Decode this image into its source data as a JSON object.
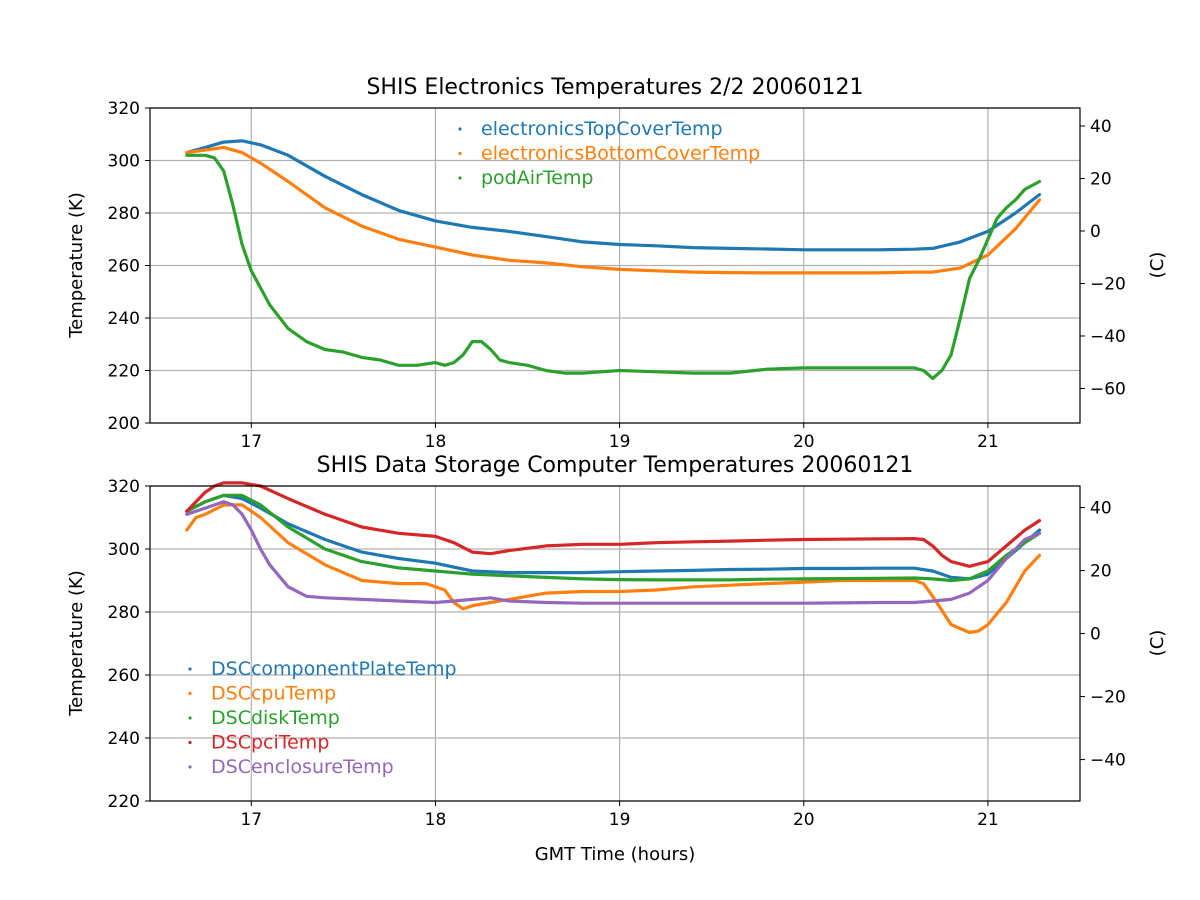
{
  "colors": {
    "blue": "#1f77b4",
    "orange": "#ff7f0e",
    "green": "#2ca02c",
    "red": "#d62728",
    "purple": "#9467bd",
    "grid": "#b0b0b0"
  },
  "chart_data": [
    {
      "type": "line",
      "title": "SHIS Electronics Temperatures 2/2 20060121",
      "xlabel": "",
      "ylabel": "Temperature (K)",
      "y2label": "(C)",
      "xlim": [
        16.45,
        21.5
      ],
      "ylim": [
        200,
        320
      ],
      "y2lim": [
        -73.15,
        46.85
      ],
      "xticks": [
        17,
        18,
        19,
        20,
        21
      ],
      "yticks": [
        200,
        220,
        240,
        260,
        280,
        300,
        320
      ],
      "y2ticks": [
        -60,
        -40,
        -20,
        0,
        20,
        40
      ],
      "grid": true,
      "legend_position": "top-center",
      "series": [
        {
          "name": "electronicsTopCoverTemp",
          "color": "blue",
          "x": [
            16.65,
            16.75,
            16.85,
            16.95,
            17.05,
            17.2,
            17.4,
            17.6,
            17.8,
            18.0,
            18.2,
            18.4,
            18.6,
            18.8,
            19.0,
            19.2,
            19.4,
            19.6,
            19.8,
            20.0,
            20.2,
            20.4,
            20.6,
            20.7,
            20.85,
            21.0,
            21.15,
            21.28
          ],
          "y": [
            303,
            305,
            307,
            307.5,
            306,
            302,
            294,
            287,
            281,
            277,
            274.5,
            273,
            271,
            269,
            268,
            267.5,
            266.8,
            266.5,
            266.3,
            266,
            266,
            266,
            266.2,
            266.5,
            269,
            273,
            280,
            287
          ]
        },
        {
          "name": "electronicsBottomCoverTemp",
          "color": "orange",
          "x": [
            16.65,
            16.75,
            16.85,
            16.95,
            17.05,
            17.2,
            17.4,
            17.6,
            17.8,
            18.0,
            18.2,
            18.4,
            18.6,
            18.8,
            19.0,
            19.2,
            19.4,
            19.6,
            19.8,
            20.0,
            20.2,
            20.4,
            20.6,
            20.7,
            20.85,
            21.0,
            21.15,
            21.28
          ],
          "y": [
            303,
            304,
            305,
            303,
            299,
            292,
            282,
            275,
            270,
            267,
            264,
            262,
            261,
            259.5,
            258.5,
            258,
            257.5,
            257.3,
            257.2,
            257.2,
            257.2,
            257.2,
            257.5,
            257.5,
            259,
            264,
            274,
            285
          ]
        },
        {
          "name": "podAirTemp",
          "color": "green",
          "x": [
            16.65,
            16.75,
            16.8,
            16.85,
            16.9,
            16.95,
            17.0,
            17.1,
            17.2,
            17.3,
            17.4,
            17.5,
            17.6,
            17.7,
            17.8,
            17.9,
            18.0,
            18.05,
            18.1,
            18.15,
            18.2,
            18.25,
            18.3,
            18.35,
            18.4,
            18.5,
            18.6,
            18.7,
            18.8,
            18.9,
            19.0,
            19.2,
            19.4,
            19.6,
            19.8,
            20.0,
            20.2,
            20.4,
            20.6,
            20.65,
            20.7,
            20.75,
            20.8,
            20.85,
            20.9,
            20.95,
            21.0,
            21.05,
            21.1,
            21.15,
            21.2,
            21.28
          ],
          "y": [
            302,
            302,
            301,
            296,
            283,
            268,
            258,
            245,
            236,
            231,
            228,
            227,
            225,
            224,
            222,
            222,
            223,
            222,
            223,
            226,
            231,
            231,
            228,
            224,
            223,
            222,
            220,
            219,
            219,
            219.5,
            220,
            219.5,
            219,
            219,
            220.5,
            221,
            221,
            221,
            221,
            220,
            217,
            220,
            226,
            240,
            255,
            262,
            270,
            278,
            282,
            285,
            289,
            292
          ]
        }
      ]
    },
    {
      "type": "line",
      "title": "SHIS Data Storage Computer Temperatures 20060121",
      "xlabel": "GMT Time (hours)",
      "ylabel": "Temperature (K)",
      "y2label": "(C)",
      "xlim": [
        16.45,
        21.5
      ],
      "ylim": [
        220,
        320
      ],
      "y2lim": [
        -53.15,
        46.85
      ],
      "xticks": [
        17,
        18,
        19,
        20,
        21
      ],
      "yticks": [
        220,
        240,
        260,
        280,
        300,
        320
      ],
      "y2ticks": [
        -40,
        -20,
        0,
        20,
        40
      ],
      "grid": true,
      "legend_position": "lower-left",
      "series": [
        {
          "name": "DSCcomponentPlateTemp",
          "color": "blue",
          "x": [
            16.65,
            16.75,
            16.85,
            16.95,
            17.05,
            17.2,
            17.4,
            17.6,
            17.8,
            18.0,
            18.2,
            18.4,
            18.6,
            18.8,
            19.0,
            19.2,
            19.4,
            19.6,
            19.8,
            20.0,
            20.2,
            20.4,
            20.6,
            20.7,
            20.8,
            20.9,
            21.0,
            21.1,
            21.2,
            21.28
          ],
          "y": [
            312,
            315,
            317,
            316,
            313,
            308,
            303,
            299,
            297,
            295.5,
            293,
            292.5,
            292.5,
            292.5,
            292.8,
            293,
            293.2,
            293.5,
            293.6,
            293.8,
            293.8,
            293.9,
            293.9,
            293,
            291,
            290.5,
            292,
            297,
            302,
            306
          ]
        },
        {
          "name": "DSCcpuTemp",
          "color": "orange",
          "x": [
            16.65,
            16.7,
            16.75,
            16.85,
            16.95,
            17.05,
            17.2,
            17.4,
            17.6,
            17.8,
            17.95,
            18.05,
            18.1,
            18.15,
            18.2,
            18.3,
            18.4,
            18.6,
            18.8,
            19.0,
            19.2,
            19.4,
            19.6,
            19.8,
            20.0,
            20.2,
            20.4,
            20.6,
            20.65,
            20.7,
            20.8,
            20.9,
            20.95,
            21.0,
            21.1,
            21.2,
            21.28
          ],
          "y": [
            306,
            310,
            311,
            314,
            314,
            310,
            302,
            295,
            290,
            289,
            289,
            287,
            283,
            281,
            282,
            283,
            284,
            286,
            286.5,
            286.5,
            287,
            288,
            288.5,
            289,
            289.5,
            290,
            290,
            290,
            289,
            285,
            276,
            273.5,
            274,
            276,
            283,
            293,
            298
          ]
        },
        {
          "name": "DSCdiskTemp",
          "color": "green",
          "x": [
            16.65,
            16.75,
            16.85,
            16.95,
            17.05,
            17.2,
            17.4,
            17.6,
            17.8,
            18.0,
            18.2,
            18.4,
            18.6,
            18.8,
            19.0,
            19.2,
            19.4,
            19.6,
            19.8,
            20.0,
            20.2,
            20.4,
            20.6,
            20.7,
            20.8,
            20.9,
            21.0,
            21.1,
            21.2,
            21.28
          ],
          "y": [
            312,
            315,
            317,
            317,
            314,
            307,
            300,
            296,
            294,
            293,
            292,
            291.5,
            291,
            290.5,
            290.3,
            290.2,
            290.2,
            290.2,
            290.4,
            290.5,
            290.6,
            290.7,
            290.8,
            290.5,
            290,
            290.5,
            293,
            298,
            302,
            305
          ]
        },
        {
          "name": "DSCpciTemp",
          "color": "red",
          "x": [
            16.65,
            16.7,
            16.75,
            16.8,
            16.85,
            16.95,
            17.05,
            17.2,
            17.4,
            17.6,
            17.8,
            18.0,
            18.1,
            18.2,
            18.3,
            18.4,
            18.6,
            18.8,
            19.0,
            19.2,
            19.4,
            19.6,
            19.8,
            20.0,
            20.2,
            20.4,
            20.6,
            20.65,
            20.7,
            20.75,
            20.8,
            20.9,
            21.0,
            21.1,
            21.2,
            21.28
          ],
          "y": [
            312,
            315,
            318,
            320,
            321,
            321,
            320,
            316,
            311,
            307,
            305,
            304,
            302,
            299,
            298.5,
            299.5,
            301,
            301.5,
            301.5,
            302,
            302.3,
            302.5,
            302.8,
            303,
            303.1,
            303.2,
            303.3,
            303,
            301,
            298,
            296,
            294.5,
            296,
            301,
            306,
            309
          ]
        },
        {
          "name": "DSCenclosureTemp",
          "color": "purple",
          "x": [
            16.65,
            16.75,
            16.8,
            16.85,
            16.9,
            16.95,
            17.0,
            17.05,
            17.1,
            17.2,
            17.3,
            17.4,
            17.6,
            17.8,
            18.0,
            18.1,
            18.2,
            18.3,
            18.4,
            18.6,
            18.8,
            19.0,
            19.2,
            19.4,
            19.6,
            19.8,
            20.0,
            20.2,
            20.4,
            20.6,
            20.7,
            20.8,
            20.9,
            21.0,
            21.1,
            21.2,
            21.28
          ],
          "y": [
            311,
            313,
            314,
            315,
            314,
            311,
            306,
            300,
            295,
            288,
            285,
            284.5,
            284,
            283.5,
            283,
            283.5,
            284,
            284.5,
            283.5,
            283,
            282.8,
            282.8,
            282.8,
            282.8,
            282.8,
            282.8,
            282.8,
            282.9,
            283,
            283,
            283.5,
            284,
            286,
            290,
            297,
            303,
            305
          ]
        }
      ]
    }
  ]
}
